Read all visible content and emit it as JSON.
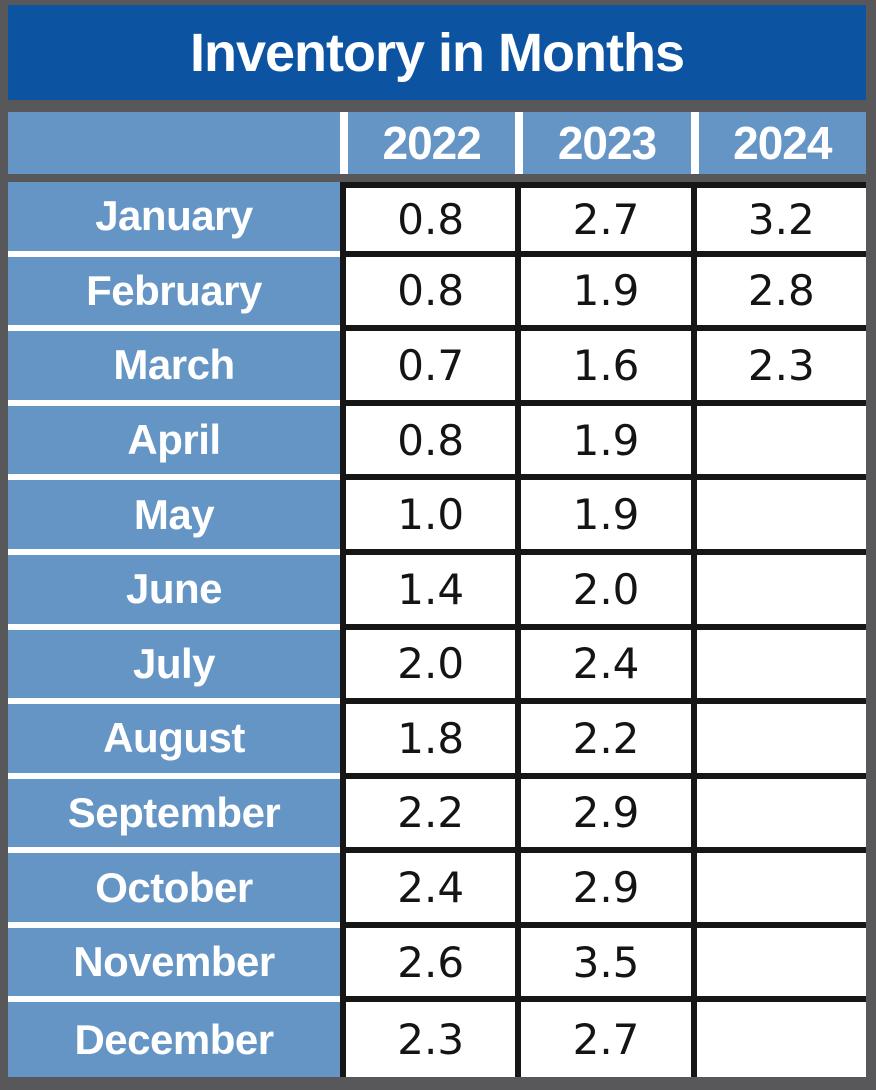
{
  "title": "Inventory in Months",
  "table": {
    "year_headers": [
      "2022",
      "2023",
      "2024"
    ],
    "rows": [
      {
        "month": "January",
        "values": [
          "0.8",
          "2.7",
          "3.2"
        ]
      },
      {
        "month": "February",
        "values": [
          "0.8",
          "1.9",
          "2.8"
        ]
      },
      {
        "month": "March",
        "values": [
          "0.7",
          "1.6",
          "2.3"
        ]
      },
      {
        "month": "April",
        "values": [
          "0.8",
          "1.9",
          ""
        ]
      },
      {
        "month": "May",
        "values": [
          "1.0",
          "1.9",
          ""
        ]
      },
      {
        "month": "June",
        "values": [
          "1.4",
          "2.0",
          ""
        ]
      },
      {
        "month": "July",
        "values": [
          "2.0",
          "2.4",
          ""
        ]
      },
      {
        "month": "August",
        "values": [
          "1.8",
          "2.2",
          ""
        ]
      },
      {
        "month": "September",
        "values": [
          "2.2",
          "2.9",
          ""
        ]
      },
      {
        "month": "October",
        "values": [
          "2.4",
          "2.9",
          ""
        ]
      },
      {
        "month": "November",
        "values": [
          "2.6",
          "3.5",
          ""
        ]
      },
      {
        "month": "December",
        "values": [
          "2.3",
          "2.7",
          ""
        ]
      }
    ]
  },
  "colors": {
    "title_bar_blue": "#0C53A2",
    "header_light_blue": "#6595C5",
    "page_background_gray": "#58585A",
    "cell_border_black": "#161616",
    "separator_white": "#FFFFFF",
    "value_text": "#141414"
  },
  "chart_data": {
    "type": "table",
    "title": "Inventory in Months",
    "categories": [
      "January",
      "February",
      "March",
      "April",
      "May",
      "June",
      "July",
      "August",
      "September",
      "October",
      "November",
      "December"
    ],
    "series": [
      {
        "name": "2022",
        "values": [
          0.8,
          0.8,
          0.7,
          0.8,
          1.0,
          1.4,
          2.0,
          1.8,
          2.2,
          2.4,
          2.6,
          2.3
        ]
      },
      {
        "name": "2023",
        "values": [
          2.7,
          1.9,
          1.6,
          1.9,
          1.9,
          2.0,
          2.4,
          2.2,
          2.9,
          2.9,
          3.5,
          2.7
        ]
      },
      {
        "name": "2024",
        "values": [
          3.2,
          2.8,
          2.3,
          null,
          null,
          null,
          null,
          null,
          null,
          null,
          null,
          null
        ]
      }
    ]
  }
}
